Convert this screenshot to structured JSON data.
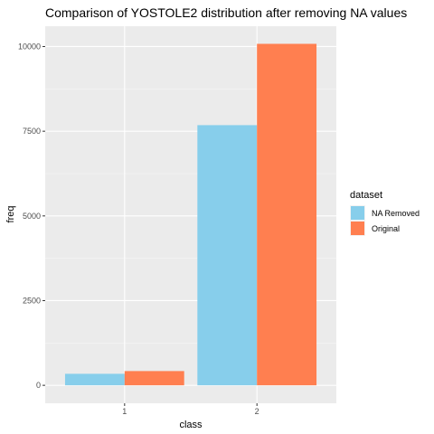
{
  "chart_data": {
    "type": "bar",
    "title": "Comparison of YOSTOLE2 distribution after removing NA values",
    "xlabel": "class",
    "ylabel": "freq",
    "categories": [
      "1",
      "2"
    ],
    "series": [
      {
        "name": "NA Removed",
        "color": "#87CEEB",
        "values": [
          340,
          7680
        ]
      },
      {
        "name": "Original",
        "color": "#FF7F50",
        "values": [
          420,
          10080
        ]
      }
    ],
    "ylim": [
      -530,
      10600
    ],
    "yticks": [
      0,
      2500,
      5000,
      7500,
      10000
    ],
    "ytick_labels": [
      "0",
      "2500",
      "5000",
      "7500",
      "10000"
    ],
    "grid": true,
    "panel_background": "#EBEBEB",
    "legend": {
      "title": "dataset",
      "position": "right"
    }
  }
}
